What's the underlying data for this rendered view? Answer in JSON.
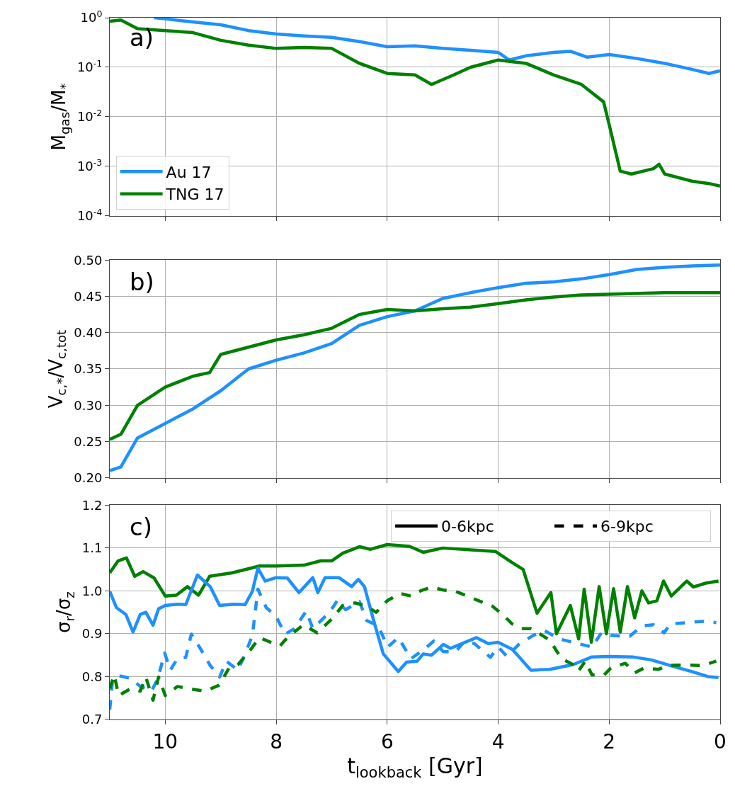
{
  "chart_data": [
    {
      "type": "line",
      "ylabel": "M$_{gas}$/M$_{*}$",
      "annotations": [
        "a)"
      ],
      "log": "y",
      "grid": true,
      "legend": "bottom left",
      "tick_labels": "y",
      "xlim": [
        11,
        0
      ],
      "xticks": [
        10,
        8,
        6,
        4,
        2,
        0
      ],
      "ylim": [
        0.0001,
        1
      ],
      "yticks": [
        {
          "value": 0.0001,
          "label": "10$^{-4}$"
        },
        {
          "value": 0.001,
          "label": "10$^{-3}$"
        },
        {
          "value": 0.01,
          "label": "10$^{-2}$"
        },
        {
          "value": 0.1,
          "label": "10$^{-1}$"
        },
        {
          "value": 1,
          "label": "10$^{0}$"
        }
      ],
      "series": [
        {
          "name": "Au 17",
          "color": "#1e90ff",
          "x": [
            10.2,
            10,
            9.5,
            9,
            8.5,
            8,
            7.5,
            7,
            6.5,
            6,
            5.5,
            5,
            4.5,
            4,
            3.8,
            3.5,
            3,
            2.7,
            2.4,
            2,
            1.5,
            1,
            0.5,
            0.2,
            0
          ],
          "values": [
            1.0,
            0.95,
            0.82,
            0.72,
            0.55,
            0.47,
            0.43,
            0.4,
            0.33,
            0.26,
            0.27,
            0.24,
            0.22,
            0.2,
            0.14,
            0.17,
            0.2,
            0.21,
            0.16,
            0.18,
            0.15,
            0.12,
            0.09,
            0.075,
            0.085
          ]
        },
        {
          "name": "TNG 17",
          "color": "#008000",
          "x": [
            11,
            10.8,
            10.5,
            10,
            9.5,
            9,
            8.5,
            8,
            7.5,
            7,
            6.5,
            6,
            5.5,
            5.2,
            4.8,
            4.5,
            4,
            3.5,
            3,
            2.5,
            2.1,
            2,
            1.8,
            1.6,
            1.2,
            1.1,
            1,
            0.5,
            0.2,
            0
          ],
          "values": [
            0.85,
            0.9,
            0.6,
            0.55,
            0.5,
            0.35,
            0.28,
            0.24,
            0.25,
            0.24,
            0.12,
            0.075,
            0.07,
            0.045,
            0.07,
            0.1,
            0.14,
            0.12,
            0.07,
            0.045,
            0.02,
            0.007,
            0.0008,
            0.0007,
            0.0009,
            0.0011,
            0.0007,
            0.0005,
            0.00045,
            0.0004
          ]
        }
      ]
    },
    {
      "type": "line",
      "ylabel": "V$_{c,*}$/V$_{c,tot}$",
      "annotations": [
        "b)"
      ],
      "grid": true,
      "tick_labels": "y",
      "xlim": [
        11,
        0
      ],
      "xticks": [
        10,
        8,
        6,
        4,
        2,
        0
      ],
      "ylim": [
        0.2,
        0.5
      ],
      "yticks": [
        {
          "value": 0.2,
          "label": "0.20"
        },
        {
          "value": 0.25,
          "label": "0.25"
        },
        {
          "value": 0.3,
          "label": "0.30"
        },
        {
          "value": 0.35,
          "label": "0.35"
        },
        {
          "value": 0.4,
          "label": "0.40"
        },
        {
          "value": 0.45,
          "label": "0.45"
        },
        {
          "value": 0.5,
          "label": "0.50"
        }
      ],
      "series": [
        {
          "color": "#1e90ff",
          "x": [
            11,
            10.8,
            10.5,
            10,
            9.5,
            9,
            8.5,
            8,
            7.5,
            7,
            6.5,
            6,
            5.5,
            5,
            4.5,
            4,
            3.5,
            3,
            2.5,
            2,
            1.5,
            1,
            0.5,
            0
          ],
          "values": [
            0.21,
            0.215,
            0.255,
            0.275,
            0.295,
            0.32,
            0.35,
            0.362,
            0.372,
            0.385,
            0.41,
            0.422,
            0.43,
            0.447,
            0.455,
            0.462,
            0.468,
            0.47,
            0.474,
            0.48,
            0.487,
            0.49,
            0.492,
            0.493
          ]
        },
        {
          "color": "#008000",
          "x": [
            11,
            10.8,
            10.5,
            10,
            9.5,
            9.2,
            9,
            8.5,
            8,
            7.5,
            7,
            6.5,
            6,
            5.5,
            5,
            4.5,
            4,
            3.5,
            3,
            2.5,
            2,
            1,
            0
          ],
          "values": [
            0.253,
            0.26,
            0.3,
            0.325,
            0.34,
            0.345,
            0.37,
            0.38,
            0.39,
            0.397,
            0.406,
            0.425,
            0.432,
            0.43,
            0.433,
            0.435,
            0.44,
            0.445,
            0.449,
            0.452,
            0.453,
            0.455,
            0.455
          ]
        }
      ]
    },
    {
      "type": "line",
      "ylabel": "σ$_{r}$/σ$_{z}$",
      "xlabel": "t$_{lookback}$ [Gyr]",
      "annotations": [
        "c)"
      ],
      "grid": true,
      "legend": "top right",
      "xlim": [
        11,
        0
      ],
      "xticks": [
        10,
        8,
        6,
        4,
        2,
        0
      ],
      "ylim": [
        0.7,
        1.2
      ],
      "yticks": [
        {
          "value": 0.7,
          "label": "0.7"
        },
        {
          "value": 0.8,
          "label": "0.8"
        },
        {
          "value": 0.9,
          "label": "0.9"
        },
        {
          "value": 1.0,
          "label": "1.0"
        },
        {
          "value": 1.1,
          "label": "1.1"
        },
        {
          "value": 1.2,
          "label": "1.2"
        }
      ],
      "series": [
        {
          "color": "#008000",
          "line_style": "solid",
          "x": [
            11,
            10.85,
            10.7,
            10.55,
            10.4,
            10.2,
            10,
            9.8,
            9.6,
            9.4,
            9.2,
            8.8,
            8.3,
            8,
            7.5,
            7.2,
            7,
            6.8,
            6.5,
            6.3,
            6,
            5.6,
            5.35,
            5,
            4.05,
            3.75,
            3.55,
            3.3,
            3.05,
            2.95,
            2.7,
            2.55,
            2.45,
            2.32,
            2.18,
            2.05,
            1.92,
            1.8,
            1.67,
            1.54,
            1.41,
            1.29,
            1.14,
            1.02,
            0.88,
            0.6,
            0.48,
            0.26,
            0.03
          ],
          "values": [
            1.042,
            1.07,
            1.077,
            1.034,
            1.045,
            1.03,
            0.988,
            0.99,
            1.01,
            0.99,
            1.034,
            1.042,
            1.058,
            1.058,
            1.06,
            1.07,
            1.07,
            1.088,
            1.103,
            1.097,
            1.108,
            1.104,
            1.09,
            1.1,
            1.092,
            1.066,
            1.05,
            0.948,
            0.996,
            0.9,
            0.966,
            0.888,
            1.004,
            0.88,
            1.01,
            0.9,
            1.005,
            0.904,
            1.01,
            0.937,
            1.0,
            0.972,
            0.977,
            1.023,
            0.988,
            1.023,
            1.009,
            1.018,
            1.023
          ]
        },
        {
          "color": "#1e90ff",
          "line_style": "solid",
          "x": [
            11,
            10.88,
            10.71,
            10.58,
            10.45,
            10.35,
            10.22,
            10.12,
            10,
            9.78,
            9.63,
            9.42,
            9.19,
            9.02,
            8.77,
            8.56,
            8.43,
            8.33,
            8.2,
            8,
            7.8,
            7.59,
            7.34,
            7.25,
            7.12,
            6.87,
            6.64,
            6.52,
            6.41,
            6.24,
            6.07,
            5.8,
            5.65,
            5.46,
            5.35,
            5.2,
            4.99,
            4.86,
            4.39,
            4.18,
            4,
            3.75,
            3.63,
            3.41,
            3.07,
            2.65,
            2.31,
            2.01,
            1.58,
            1.24,
            0.82,
            0.52,
            0.22,
            0.03
          ],
          "values": [
            0.999,
            0.961,
            0.945,
            0.904,
            0.945,
            0.95,
            0.92,
            0.958,
            0.966,
            0.969,
            0.968,
            1.037,
            1.01,
            0.966,
            0.969,
            0.968,
            0.999,
            1.053,
            1.023,
            1.031,
            1.03,
            0.996,
            1.031,
            0.996,
            1.031,
            1.031,
            1.01,
            1.027,
            1.01,
            0.929,
            0.853,
            0.812,
            0.834,
            0.836,
            0.853,
            0.85,
            0.875,
            0.866,
            0.891,
            0.877,
            0.88,
            0.864,
            0.847,
            0.815,
            0.817,
            0.828,
            0.846,
            0.847,
            0.846,
            0.839,
            0.823,
            0.812,
            0.8,
            0.798
          ]
        },
        {
          "color": "#1e90ff",
          "line_style": "dashed",
          "x": [
            11,
            10.95,
            10.84,
            10.62,
            10.45,
            10.25,
            10.14,
            10.01,
            9.91,
            9.78,
            9.63,
            9.53,
            9.36,
            9.19,
            9.02,
            8.9,
            8.69,
            8.56,
            8.43,
            8.33,
            8.18,
            8.01,
            7.84,
            7.67,
            7.46,
            7.34,
            7.04,
            6.9,
            6.75,
            6.5,
            6.37,
            6.16,
            5.99,
            5.8,
            5.57,
            5.33,
            5.16,
            4.99,
            4.77,
            4.6,
            4.43,
            4.14,
            4,
            3.84,
            3.63,
            3.37,
            3.16,
            2.9,
            2.65,
            2.31,
            2.14,
            1.97,
            1.63,
            1.41,
            1.2,
            1.01,
            0.9,
            0.6,
            0.31,
            0.07
          ],
          "values": [
            0.723,
            0.793,
            0.802,
            0.796,
            0.777,
            0.766,
            0.793,
            0.855,
            0.815,
            0.842,
            0.845,
            0.899,
            0.864,
            0.826,
            0.799,
            0.836,
            0.815,
            0.853,
            0.896,
            1.004,
            0.961,
            0.942,
            0.899,
            0.912,
            0.953,
            0.912,
            0.95,
            0.977,
            0.956,
            0.975,
            0.931,
            0.918,
            0.869,
            0.891,
            0.842,
            0.864,
            0.883,
            0.858,
            0.858,
            0.883,
            0.877,
            0.845,
            0.869,
            0.847,
            0.875,
            0.896,
            0.907,
            0.888,
            0.88,
            0.869,
            0.902,
            0.896,
            0.894,
            0.918,
            0.921,
            0.902,
            0.923,
            0.926,
            0.929,
            0.926
          ]
        },
        {
          "color": "#008000",
          "line_style": "dashed",
          "x": [
            11,
            10.92,
            10.84,
            10.62,
            10.45,
            10.35,
            10.22,
            10.12,
            10,
            9.78,
            9.58,
            9.28,
            9.03,
            8.85,
            8.69,
            8.52,
            8.3,
            8.1,
            7.93,
            7.8,
            7.51,
            7.26,
            7,
            6.8,
            6.58,
            6.37,
            6.2,
            6,
            5.77,
            5.57,
            5.4,
            5.2,
            4.99,
            4.77,
            4.56,
            4.35,
            4.1,
            3.92,
            3.75,
            3.58,
            3.41,
            3.24,
            3.07,
            2.86,
            2.65,
            2.56,
            2.43,
            2.31,
            2.09,
            1.97,
            1.71,
            1.54,
            1.37,
            1.11,
            0.94,
            0.69,
            0.31,
            0.07
          ],
          "values": [
            0.772,
            0.804,
            0.756,
            0.772,
            0.766,
            0.799,
            0.745,
            0.799,
            0.756,
            0.777,
            0.772,
            0.766,
            0.78,
            0.82,
            0.828,
            0.853,
            0.891,
            0.88,
            0.872,
            0.891,
            0.921,
            0.902,
            0.934,
            0.966,
            0.972,
            0.964,
            0.95,
            0.977,
            0.994,
            0.988,
            1.0,
            1.009,
            1.002,
            0.999,
            0.988,
            0.977,
            0.964,
            0.945,
            0.923,
            0.912,
            0.912,
            0.899,
            0.885,
            0.842,
            0.828,
            0.812,
            0.836,
            0.804,
            0.804,
            0.82,
            0.831,
            0.809,
            0.82,
            0.817,
            0.826,
            0.827,
            0.826,
            0.836
          ]
        },
        {
          "name": "0-6kpc",
          "color": "#000000",
          "line_style": "solid"
        },
        {
          "name": "6-9kpc",
          "color": "#000000",
          "line_style": "dashed"
        }
      ]
    }
  ]
}
